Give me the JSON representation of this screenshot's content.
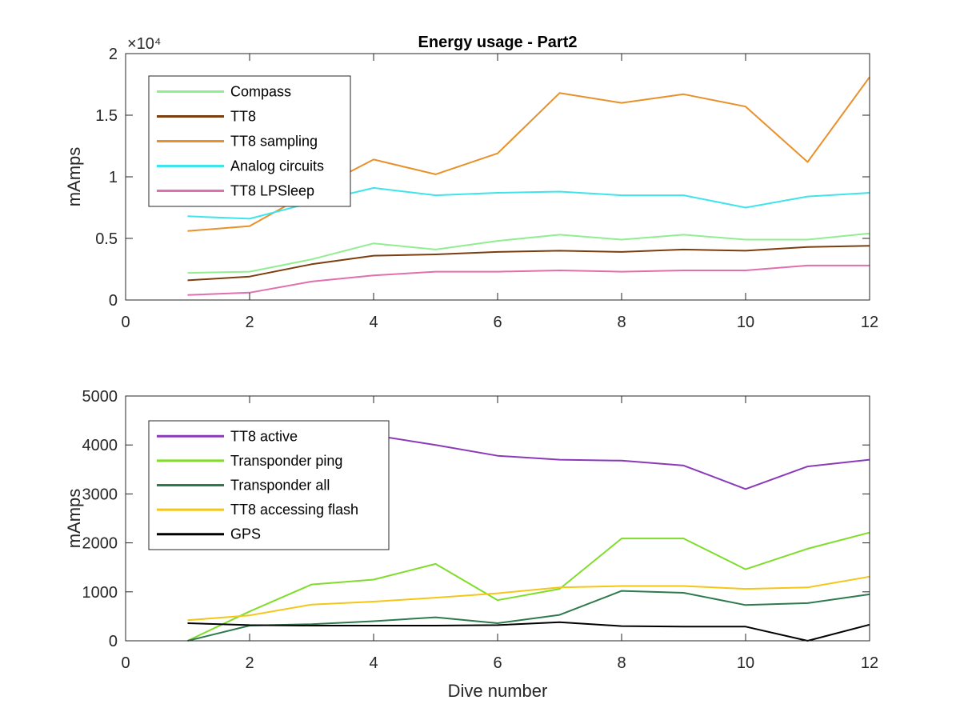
{
  "chart_data": [
    {
      "type": "line",
      "title": "Energy usage - Part2",
      "xlabel": "",
      "ylabel": "mAmps",
      "xlim": [
        0,
        12
      ],
      "ylim": [
        0,
        20000
      ],
      "xticks": [
        0,
        2,
        4,
        6,
        8,
        10,
        12
      ],
      "xtick_labels": [
        "0",
        "2",
        "4",
        "6",
        "8",
        "10",
        "12"
      ],
      "yticks": [
        0,
        5000,
        10000,
        15000,
        20000
      ],
      "ytick_labels": [
        "0",
        "0.5",
        "1",
        "1.5",
        "2"
      ],
      "y_exponent": "×10⁴",
      "grid": false,
      "legend_position": "top-left",
      "x": [
        1,
        2,
        3,
        4,
        5,
        6,
        7,
        8,
        9,
        10,
        11,
        12
      ],
      "series": [
        {
          "name": "Compass",
          "color": "#90ee90",
          "values": [
            2200,
            2300,
            3300,
            4600,
            4100,
            4800,
            5300,
            4900,
            5300,
            4900,
            4900,
            5400
          ]
        },
        {
          "name": "TT8",
          "color": "#7a3e10",
          "values": [
            1600,
            1900,
            2900,
            3600,
            3700,
            3900,
            4000,
            3900,
            4100,
            4000,
            4300,
            4400
          ]
        },
        {
          "name": "TT8 sampling",
          "color": "#e8902a",
          "values": [
            5600,
            6000,
            8800,
            11400,
            10200,
            11900,
            16800,
            16000,
            16700,
            15700,
            11200,
            18100
          ]
        },
        {
          "name": "Analog circuits",
          "color": "#3ee4ec",
          "values": [
            6800,
            6600,
            7900,
            9100,
            8500,
            8700,
            8800,
            8500,
            8500,
            7500,
            8400,
            8700
          ]
        },
        {
          "name": "TT8 LPSleep",
          "color": "#e06fae",
          "values": [
            400,
            600,
            1500,
            2000,
            2300,
            2300,
            2400,
            2300,
            2400,
            2400,
            2800,
            2800
          ]
        }
      ]
    },
    {
      "type": "line",
      "title": "",
      "xlabel": "Dive number",
      "ylabel": "mAmps",
      "xlim": [
        0,
        12
      ],
      "ylim": [
        0,
        5000
      ],
      "xticks": [
        0,
        2,
        4,
        6,
        8,
        10,
        12
      ],
      "xtick_labels": [
        "0",
        "2",
        "4",
        "6",
        "8",
        "10",
        "12"
      ],
      "yticks": [
        0,
        1000,
        2000,
        3000,
        4000,
        5000
      ],
      "ytick_labels": [
        "0",
        "1000",
        "2000",
        "3000",
        "4000",
        "5000"
      ],
      "grid": false,
      "legend_position": "top-left",
      "x": [
        1,
        2,
        3,
        4,
        5,
        6,
        7,
        8,
        9,
        10,
        11,
        12
      ],
      "series": [
        {
          "name": "TT8 active",
          "color": "#8a3ab9",
          "values": [
            4450,
            4420,
            4380,
            4200,
            4000,
            3780,
            3700,
            3680,
            3580,
            3100,
            3560,
            3700
          ]
        },
        {
          "name": "Transponder ping",
          "color": "#7fdd2a",
          "values": [
            0,
            600,
            1150,
            1250,
            1570,
            830,
            1060,
            2090,
            2090,
            1460,
            1880,
            2210
          ]
        },
        {
          "name": "Transponder all",
          "color": "#2e7a4e",
          "values": [
            0,
            310,
            340,
            400,
            480,
            360,
            530,
            1020,
            980,
            730,
            770,
            950
          ]
        },
        {
          "name": "TT8 accessing flash",
          "color": "#f5c518",
          "values": [
            420,
            520,
            740,
            800,
            880,
            970,
            1090,
            1120,
            1120,
            1060,
            1090,
            1310
          ]
        },
        {
          "name": "GPS",
          "color": "#000000",
          "values": [
            360,
            320,
            310,
            310,
            310,
            320,
            380,
            300,
            290,
            290,
            0,
            330
          ]
        }
      ]
    }
  ]
}
